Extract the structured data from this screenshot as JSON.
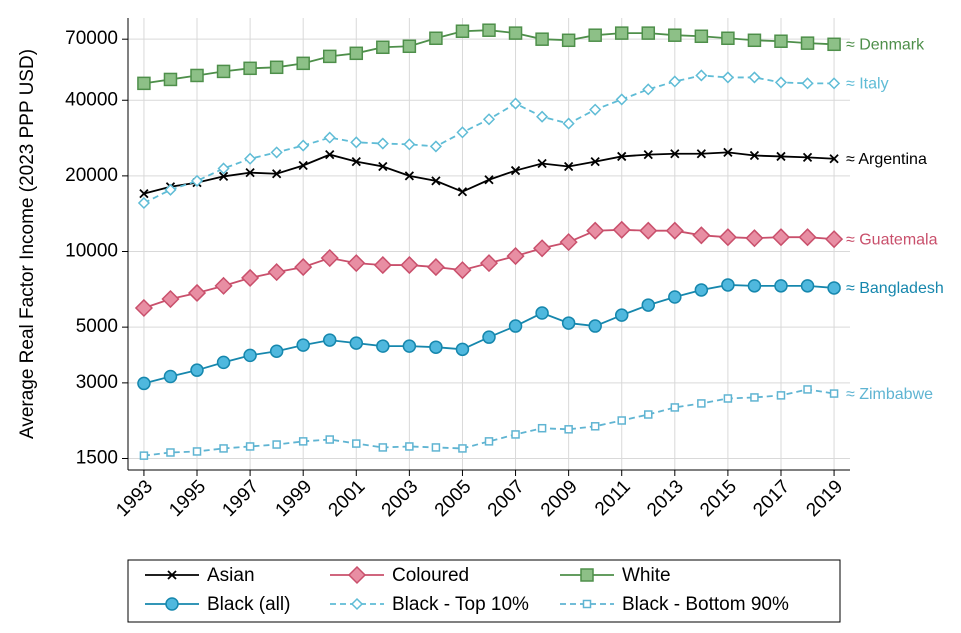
{
  "chart_data": {
    "type": "line",
    "y_label": "Average Real Factor Income (2023 PPP USD)",
    "log_y": true,
    "grid": true,
    "legend": "bottom",
    "x": [
      1993,
      1994,
      1995,
      1996,
      1997,
      1998,
      1999,
      2000,
      2001,
      2002,
      2003,
      2004,
      2005,
      2006,
      2007,
      2008,
      2009,
      2010,
      2011,
      2012,
      2013,
      2014,
      2015,
      2016,
      2017,
      2018,
      2019
    ],
    "xlim": [
      1992.4,
      2019.6
    ],
    "xticks": [
      1993,
      1995,
      1997,
      1999,
      2001,
      2003,
      2005,
      2007,
      2009,
      2011,
      2013,
      2015,
      2017,
      2019
    ],
    "ylim": [
      1350,
      85000
    ],
    "yticks": [
      1500,
      3000,
      5000,
      10000,
      20000,
      40000,
      70000
    ],
    "series": [
      {
        "name": "Asian",
        "color": "#000000",
        "fill": "none",
        "marker": "x",
        "dash": false,
        "label": "≈ Argentina",
        "values": [
          17000,
          18100,
          18800,
          19900,
          20600,
          20400,
          22000,
          24300,
          22800,
          21800,
          20000,
          19100,
          17300,
          19300,
          21000,
          22400,
          21800,
          22800,
          23900,
          24300,
          24500,
          24500,
          24800,
          24100,
          23900,
          23700,
          23400
        ]
      },
      {
        "name": "Coloured",
        "color": "#c9506c",
        "fill": "#e88ea3",
        "marker": "diamond",
        "dash": false,
        "label": "≈ Guatemala",
        "values": [
          5960,
          6470,
          6840,
          7300,
          7850,
          8280,
          8670,
          9420,
          8990,
          8830,
          8830,
          8670,
          8430,
          8990,
          9590,
          10300,
          10900,
          12100,
          12200,
          12100,
          12100,
          11600,
          11400,
          11300,
          11400,
          11400,
          11200
        ]
      },
      {
        "name": "White",
        "color": "#4e8f4a",
        "fill": "#8dc087",
        "marker": "square",
        "dash": false,
        "label": "≈ Denmark",
        "values": [
          46700,
          48400,
          50200,
          52100,
          53600,
          54100,
          56100,
          59800,
          61500,
          65000,
          65600,
          70600,
          75300,
          76000,
          74000,
          70000,
          69300,
          72600,
          74000,
          74000,
          72600,
          71900,
          70600,
          69300,
          68700,
          67500,
          66800
        ]
      },
      {
        "name": "Black (all)",
        "color": "#1687ad",
        "fill": "#4fb8de",
        "marker": "circle",
        "dash": false,
        "label": "≈ Bangladesh",
        "values": [
          2985,
          3180,
          3370,
          3620,
          3860,
          4010,
          4240,
          4440,
          4320,
          4200,
          4200,
          4160,
          4080,
          4560,
          5050,
          5690,
          5190,
          5050,
          5580,
          6120,
          6590,
          7030,
          7360,
          7300,
          7300,
          7300,
          7160
        ]
      },
      {
        "name": "Black - Top 10%",
        "color": "#5fbcd6",
        "fill": "#ffffff",
        "marker": "smalldiamond",
        "dash": true,
        "label": "≈ Italy",
        "values": [
          15600,
          17600,
          19100,
          21400,
          23400,
          24800,
          26400,
          28400,
          27200,
          26900,
          26700,
          26200,
          29800,
          33600,
          38800,
          34400,
          32300,
          36700,
          40300,
          44200,
          47500,
          50200,
          49300,
          49300,
          47100,
          46700,
          46700
        ]
      },
      {
        "name": "Black - Bottom 90%",
        "color": "#5fb4d2",
        "fill": "#ffffff",
        "marker": "smallsquare",
        "dash": true,
        "label": "≈ Zimbabwe",
        "values": [
          1540,
          1585,
          1600,
          1645,
          1675,
          1705,
          1755,
          1785,
          1720,
          1660,
          1675,
          1660,
          1645,
          1755,
          1870,
          1980,
          1960,
          2015,
          2125,
          2245,
          2395,
          2485,
          2600,
          2625,
          2675,
          2825,
          2720
        ]
      }
    ]
  }
}
